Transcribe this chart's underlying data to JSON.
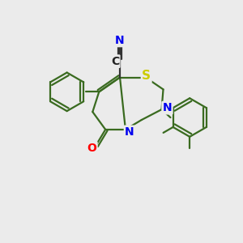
{
  "bg_color": "#ebebeb",
  "bond_color": "#3a6b20",
  "bond_width": 1.6,
  "atom_colors": {
    "N": "#0000ee",
    "S": "#cccc00",
    "O": "#ff0000",
    "C": "#3a6b20",
    "CN_C": "#222222",
    "CN_N": "#0000ee"
  },
  "font_size_atoms": 10
}
